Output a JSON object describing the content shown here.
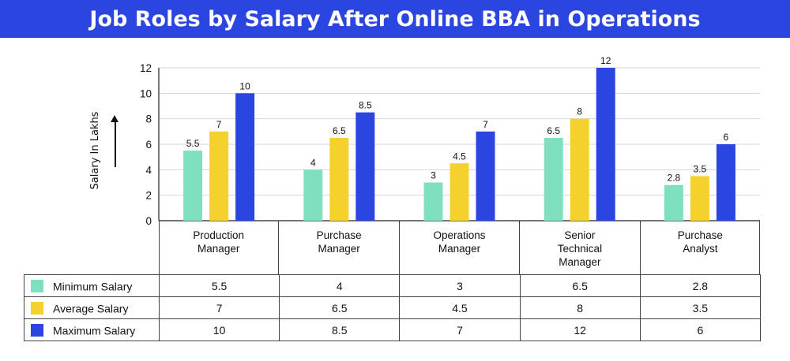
{
  "title": "Job Roles by Salary After Online BBA in Operations",
  "chart_data": {
    "type": "bar",
    "title": "Job Roles by Salary After Online BBA in Operations",
    "ylabel": "Salary In Lakhs",
    "xlabel": "",
    "ylim": [
      0,
      12
    ],
    "yticks": [
      0,
      2,
      4,
      6,
      8,
      10,
      12
    ],
    "grid": true,
    "categories": [
      "Production\nManager",
      "Purchase\nManager",
      "Operations\nManager",
      "Senior\nTechnical\nManager",
      "Purchase\nAnalyst"
    ],
    "series": [
      {
        "name": "Minimum Salary",
        "color": "#7fe0bf",
        "values": [
          5.5,
          4,
          3,
          6.5,
          2.8
        ]
      },
      {
        "name": "Average Salary",
        "color": "#f5d12e",
        "values": [
          7,
          6.5,
          4.5,
          8,
          3.5
        ]
      },
      {
        "name": "Maximum Salary",
        "color": "#2b45e0",
        "values": [
          10,
          8.5,
          7,
          12,
          6
        ]
      }
    ],
    "value_labels": [
      [
        "5.5",
        "4",
        "3",
        "6.5",
        "2.8"
      ],
      [
        "7",
        "6.5",
        "4.5",
        "8",
        "3.5"
      ],
      [
        "10",
        "8.5",
        "7",
        "12",
        "6"
      ]
    ],
    "legend_placement": "table-bottom"
  }
}
